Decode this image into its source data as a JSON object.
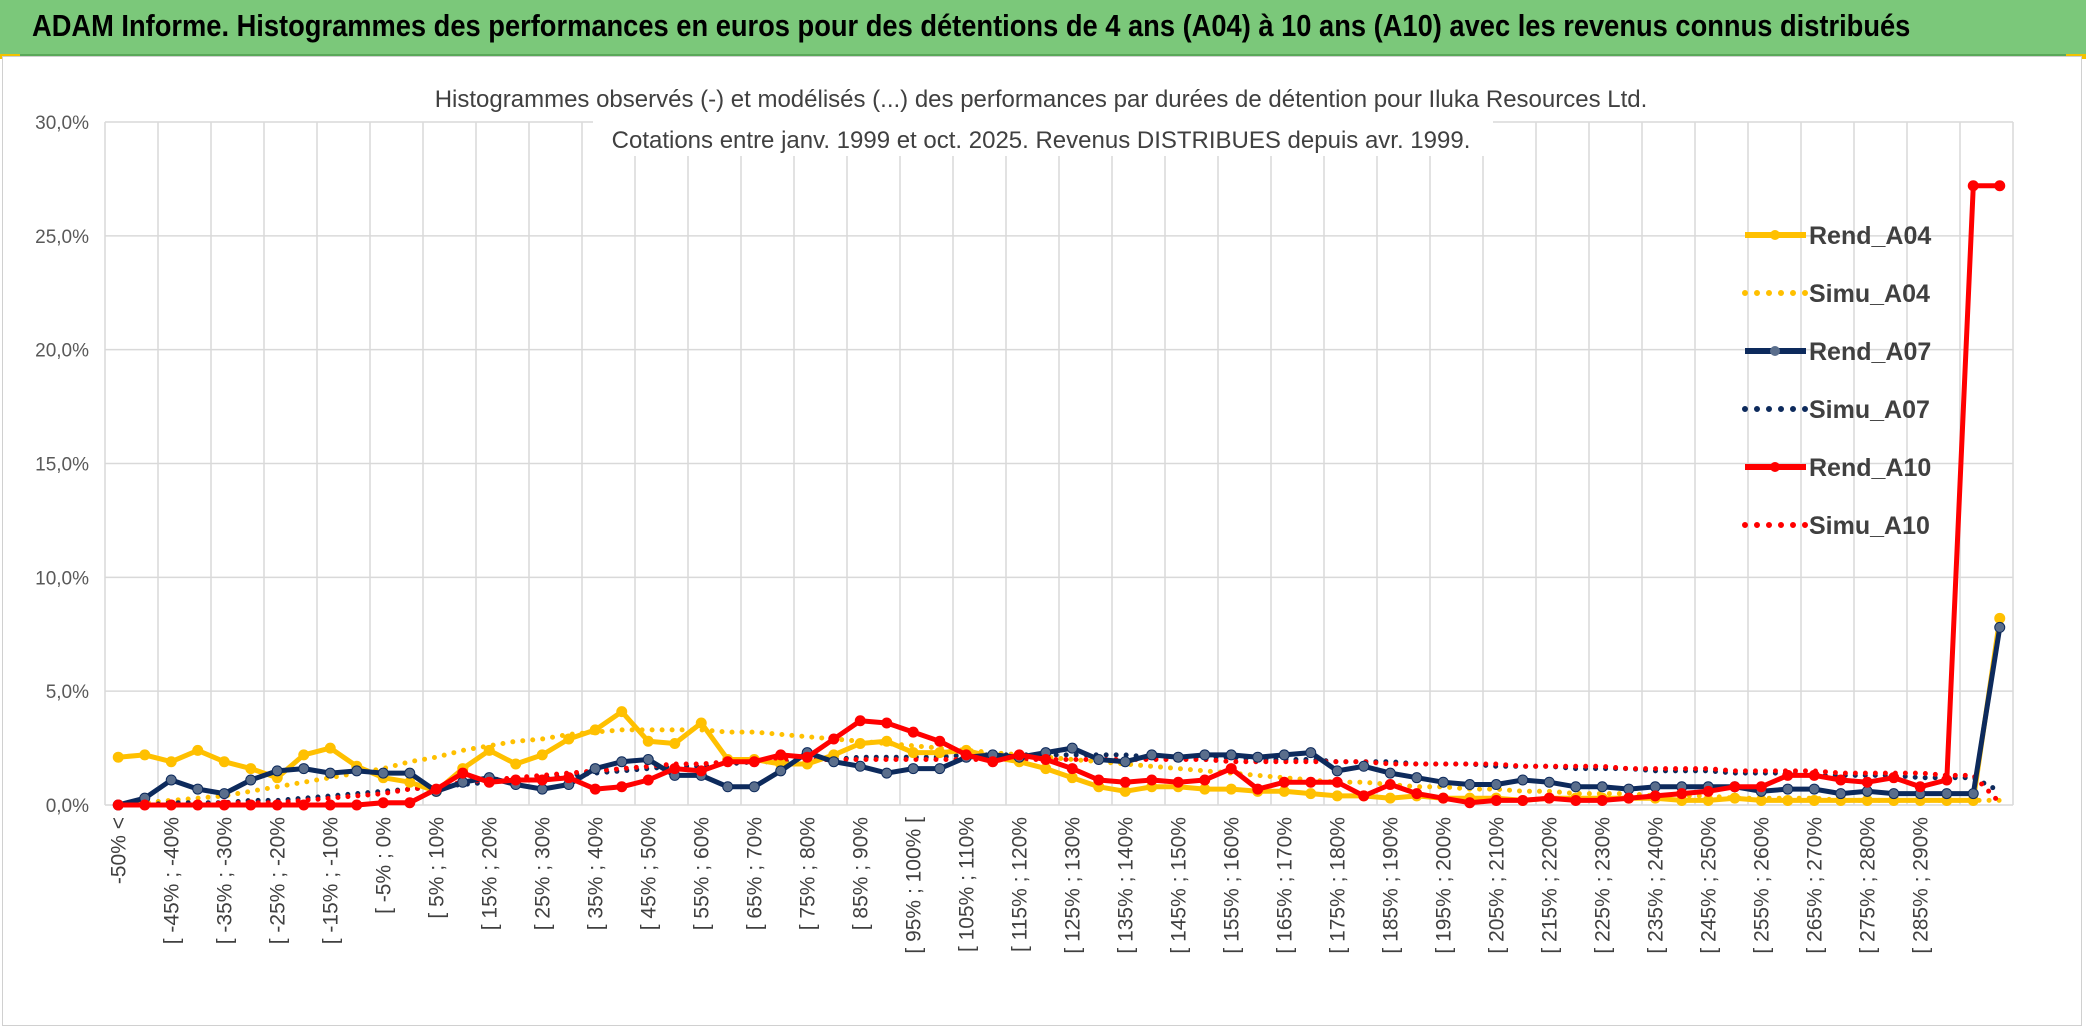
{
  "header": {
    "title": "ADAM Informe. Histogrammes des performances en euros pour des détentions de 4 ans (A04) à 10 ans (A10) avec les revenus connus distribués"
  },
  "colors": {
    "banner": "#7bc87a",
    "A04": "#ffc000",
    "A07": "#0d2a5c",
    "A07_marker": "#5a6e8c",
    "A10": "#ff0000",
    "grid": "#d9d9d9"
  },
  "chart_data": {
    "type": "line",
    "title": "Histogrammes observés (-) et modélisés (...) des performances par durées de détention pour Iluka Resources Ltd.",
    "subtitle": "Cotations entre janv. 1999 et oct. 2025. Revenus DISTRIBUES depuis avr. 1999.",
    "ylim": [
      0,
      30
    ],
    "y_ticks": [
      "0,0%",
      "5,0%",
      "10,0%",
      "15,0%",
      "20,0%",
      "25,0%",
      "30,0%"
    ],
    "y_tick_values": [
      0,
      5,
      10,
      15,
      20,
      25,
      30
    ],
    "category_count": 72,
    "tick_labels": [
      "-50% <",
      "[ -45% ; -40%",
      "[ -35% ; -30%",
      "[ -25% ; -20%",
      "[ -15% ; -10%",
      "[ -5% ; 0%",
      "[ 5% ; 10%",
      "[ 15% ; 20%",
      "[ 25% ; 30%",
      "[ 35% ; 40%",
      "[ 45% ; 50%",
      "[ 55% ; 60%",
      "[ 65% ; 70%",
      "[ 75% ; 80%",
      "[ 85% ; 90%",
      "[ 95% ; 100% [",
      "[ 105% ; 110%",
      "[ 115% ; 120%",
      "[ 125% ; 130%",
      "[ 135% ; 140%",
      "[ 145% ; 150%",
      "[ 155% ; 160%",
      "[ 165% ; 170%",
      "[ 175% ; 180%",
      "[ 185% ; 190%",
      "[ 195% ; 200%",
      "[ 205% ; 210%",
      "[ 215% ; 220%",
      "[ 225% ; 230%",
      "[ 235% ; 240%",
      "[ 245% ; 250%",
      "[ 255% ; 260%",
      "[ 265% ; 270%",
      "[ 275% ; 280%",
      "[ 285% ; 290%"
    ],
    "tick_label_every": 2,
    "legend_position": "right",
    "grid": true,
    "series": [
      {
        "name": "Rend_A04",
        "color": "#ffc000",
        "style": "solid",
        "markers": true,
        "values": [
          2.1,
          2.2,
          1.9,
          2.4,
          1.9,
          1.6,
          1.2,
          2.2,
          2.5,
          1.7,
          1.2,
          1.0,
          0.6,
          1.6,
          2.4,
          1.8,
          2.2,
          2.9,
          3.3,
          4.1,
          2.8,
          2.7,
          3.6,
          2.0,
          2.0,
          1.8,
          1.8,
          2.2,
          2.7,
          2.8,
          2.3,
          2.3,
          2.4,
          2.1,
          1.9,
          1.6,
          1.2,
          0.8,
          0.6,
          0.8,
          0.8,
          0.7,
          0.7,
          0.6,
          0.6,
          0.5,
          0.4,
          0.4,
          0.3,
          0.4,
          0.3,
          0.3,
          0.3,
          0.2,
          0.3,
          0.3,
          0.3,
          0.3,
          0.3,
          0.2,
          0.2,
          0.3,
          0.2,
          0.2,
          0.2,
          0.2,
          0.2,
          0.2,
          0.2,
          0.2,
          0.2,
          8.2
        ]
      },
      {
        "name": "Simu_A04",
        "color": "#ffc000",
        "style": "dotted",
        "markers": false,
        "values": [
          0.1,
          0.1,
          0.2,
          0.3,
          0.4,
          0.6,
          0.8,
          1.0,
          1.2,
          1.4,
          1.6,
          1.9,
          2.1,
          2.4,
          2.6,
          2.8,
          2.9,
          3.1,
          3.2,
          3.3,
          3.3,
          3.3,
          3.3,
          3.2,
          3.2,
          3.1,
          3.0,
          2.9,
          2.8,
          2.7,
          2.6,
          2.5,
          2.4,
          2.3,
          2.2,
          2.1,
          2.0,
          1.9,
          1.8,
          1.7,
          1.6,
          1.5,
          1.4,
          1.3,
          1.2,
          1.1,
          1.0,
          1.0,
          0.9,
          0.8,
          0.8,
          0.7,
          0.7,
          0.6,
          0.6,
          0.5,
          0.5,
          0.5,
          0.4,
          0.4,
          0.4,
          0.3,
          0.3,
          0.3,
          0.3,
          0.2,
          0.2,
          0.2,
          0.2,
          0.2,
          0.2,
          0.2
        ]
      },
      {
        "name": "Rend_A07",
        "color": "#0d2a5c",
        "style": "solid",
        "markers": true,
        "values": [
          0.0,
          0.3,
          1.1,
          0.7,
          0.5,
          1.1,
          1.5,
          1.6,
          1.4,
          1.5,
          1.4,
          1.4,
          0.6,
          1.0,
          1.2,
          0.9,
          0.7,
          0.9,
          1.6,
          1.9,
          2.0,
          1.3,
          1.3,
          0.8,
          0.8,
          1.5,
          2.3,
          1.9,
          1.7,
          1.4,
          1.6,
          1.6,
          2.1,
          2.2,
          2.1,
          2.3,
          2.5,
          2.0,
          1.9,
          2.2,
          2.1,
          2.2,
          2.2,
          2.1,
          2.2,
          2.3,
          1.5,
          1.7,
          1.4,
          1.2,
          1.0,
          0.9,
          0.9,
          1.1,
          1.0,
          0.8,
          0.8,
          0.7,
          0.8,
          0.8,
          0.8,
          0.8,
          0.6,
          0.7,
          0.7,
          0.5,
          0.6,
          0.5,
          0.5,
          0.5,
          0.5,
          7.8
        ]
      },
      {
        "name": "Simu_A07",
        "color": "#0d2a5c",
        "style": "dotted",
        "markers": false,
        "values": [
          0.0,
          0.0,
          0.1,
          0.1,
          0.1,
          0.2,
          0.2,
          0.3,
          0.4,
          0.5,
          0.6,
          0.7,
          0.8,
          0.9,
          1.0,
          1.1,
          1.2,
          1.3,
          1.4,
          1.5,
          1.6,
          1.7,
          1.7,
          1.8,
          1.9,
          1.9,
          2.0,
          2.0,
          2.1,
          2.1,
          2.1,
          2.1,
          2.2,
          2.2,
          2.2,
          2.2,
          2.2,
          2.2,
          2.2,
          2.1,
          2.1,
          2.1,
          2.1,
          2.0,
          2.0,
          2.0,
          1.9,
          1.9,
          1.9,
          1.8,
          1.8,
          1.8,
          1.7,
          1.7,
          1.7,
          1.6,
          1.6,
          1.6,
          1.5,
          1.5,
          1.5,
          1.4,
          1.4,
          1.4,
          1.3,
          1.3,
          1.3,
          1.3,
          1.2,
          1.2,
          1.2,
          0.6
        ]
      },
      {
        "name": "Rend_A10",
        "color": "#ff0000",
        "style": "solid",
        "markers": true,
        "values": [
          0.0,
          0.0,
          0.0,
          0.0,
          0.0,
          0.0,
          0.0,
          0.0,
          0.0,
          0.0,
          0.1,
          0.1,
          0.7,
          1.4,
          1.0,
          1.1,
          1.1,
          1.2,
          0.7,
          0.8,
          1.1,
          1.6,
          1.5,
          1.9,
          1.9,
          2.2,
          2.1,
          2.9,
          3.7,
          3.6,
          3.2,
          2.8,
          2.2,
          1.9,
          2.2,
          2.0,
          1.6,
          1.1,
          1.0,
          1.1,
          1.0,
          1.1,
          1.6,
          0.7,
          1.0,
          1.0,
          1.0,
          0.4,
          0.9,
          0.5,
          0.3,
          0.1,
          0.2,
          0.2,
          0.3,
          0.2,
          0.2,
          0.3,
          0.4,
          0.5,
          0.6,
          0.8,
          0.8,
          1.3,
          1.3,
          1.1,
          1.0,
          1.2,
          0.8,
          1.1,
          27.2,
          27.2
        ]
      },
      {
        "name": "Simu_A10",
        "color": "#ff0000",
        "style": "dotted",
        "markers": false,
        "values": [
          0.0,
          0.0,
          0.0,
          0.0,
          0.1,
          0.1,
          0.1,
          0.2,
          0.3,
          0.4,
          0.5,
          0.7,
          0.8,
          1.0,
          1.1,
          1.2,
          1.3,
          1.4,
          1.5,
          1.6,
          1.7,
          1.8,
          1.8,
          1.9,
          1.9,
          2.0,
          2.0,
          2.0,
          2.0,
          2.0,
          2.0,
          2.0,
          2.0,
          2.0,
          2.0,
          2.0,
          2.0,
          2.0,
          2.0,
          2.0,
          2.0,
          2.0,
          1.9,
          1.9,
          1.9,
          1.9,
          1.9,
          1.9,
          1.8,
          1.8,
          1.8,
          1.8,
          1.8,
          1.7,
          1.7,
          1.7,
          1.7,
          1.6,
          1.6,
          1.6,
          1.6,
          1.5,
          1.5,
          1.5,
          1.5,
          1.4,
          1.4,
          1.4,
          1.4,
          1.3,
          1.3,
          0.1
        ]
      }
    ]
  }
}
